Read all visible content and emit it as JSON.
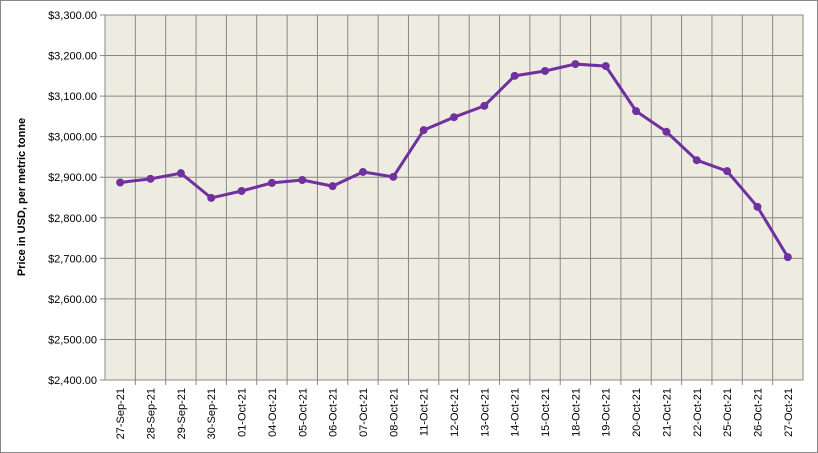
{
  "chart_data": {
    "type": "line",
    "y_label": "Price in USD, per metric tonne",
    "categories": [
      "27-Sep-21",
      "28-Sep-21",
      "29-Sep-21",
      "30-Sep-21",
      "01-Oct-21",
      "04-Oct-21",
      "05-Oct-21",
      "06-Oct-21",
      "07-Oct-21",
      "08-Oct-21",
      "11-Oct-21",
      "12-Oct-21",
      "13-Oct-21",
      "14-Oct-21",
      "15-Oct-21",
      "18-Oct-21",
      "19-Oct-21",
      "20-Oct-21",
      "21-Oct-21",
      "22-Oct-21",
      "25-Oct-21",
      "26-Oct-21",
      "27-Oct-21"
    ],
    "values": [
      2887,
      2896,
      2910,
      2849,
      2866,
      2886,
      2893,
      2878,
      2913,
      2901,
      3016,
      3048,
      3076,
      3150,
      3162,
      3179,
      3174,
      3063,
      3012,
      2942,
      2915,
      2827,
      2703
    ],
    "color": "#7030a0",
    "ylim": [
      2400,
      3300
    ],
    "yticks": [
      {
        "value": 2400,
        "label": "$2,400.00"
      },
      {
        "value": 2500,
        "label": "$2,500.00"
      },
      {
        "value": 2600,
        "label": "$2,600.00"
      },
      {
        "value": 2700,
        "label": "$2,700.00"
      },
      {
        "value": 2800,
        "label": "$2,800.00"
      },
      {
        "value": 2900,
        "label": "$2,900.00"
      },
      {
        "value": 3000,
        "label": "$3,000.00"
      },
      {
        "value": 3100,
        "label": "$3,100.00"
      },
      {
        "value": 3200,
        "label": "$3,200.00"
      },
      {
        "value": 3300,
        "label": "$3,300.00"
      }
    ],
    "grid": true
  }
}
